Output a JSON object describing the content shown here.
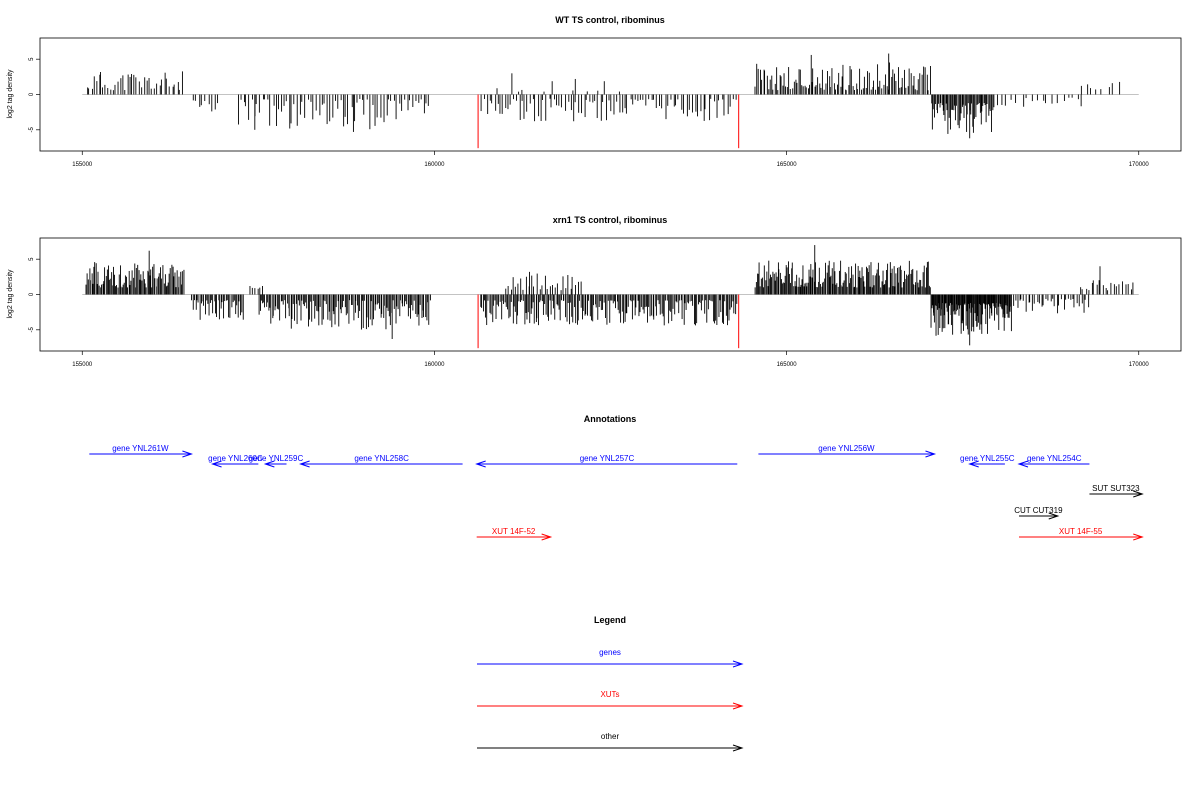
{
  "chart_data": [
    {
      "type": "bar",
      "title": "WT TS control, ribominus",
      "ylabel": "log2 tag density",
      "xlim": [
        154400,
        170600
      ],
      "ylim": [
        -8,
        8
      ],
      "xticks": [
        155000,
        160000,
        165000,
        170000
      ],
      "yticks": [
        -5,
        0,
        5
      ],
      "regions": [
        {
          "start": 155050,
          "end": 156450,
          "min": 0.6,
          "max": 3.4,
          "sign": 1,
          "n": 38,
          "seed": 11
        },
        {
          "start": 156550,
          "end": 156950,
          "min": 0.8,
          "max": 2.4,
          "sign": -1,
          "n": 9,
          "seed": 12
        },
        {
          "start": 157200,
          "end": 159950,
          "min": 0.6,
          "max": 5.0,
          "sign": -1,
          "n": 72,
          "seed": 13
        },
        {
          "start": 160650,
          "end": 164300,
          "min": 0.6,
          "max": 3.8,
          "sign": -1,
          "n": 95,
          "seed": 14
        },
        {
          "start": 160850,
          "end": 162800,
          "min": 0.4,
          "max": 2.0,
          "sign": 1,
          "n": 10,
          "seed": 15
        },
        {
          "start": 164550,
          "end": 167050,
          "min": 0.6,
          "max": 4.6,
          "sign": 1,
          "n": 110,
          "seed": 16
        },
        {
          "start": 167050,
          "end": 167950,
          "min": 1.2,
          "max": 5.6,
          "sign": -1,
          "n": 60,
          "seed": 17
        },
        {
          "start": 167950,
          "end": 169250,
          "min": 0.4,
          "max": 1.8,
          "sign": -1,
          "n": 18,
          "seed": 18
        },
        {
          "start": 169150,
          "end": 169750,
          "min": 0.6,
          "max": 1.8,
          "sign": 1,
          "n": 8,
          "seed": 19
        }
      ],
      "spikes": [
        {
          "x": 155250,
          "y": 2.8
        },
        {
          "x": 155700,
          "y": 2.9
        },
        {
          "x": 161100,
          "y": 3.0
        },
        {
          "x": 162000,
          "y": 2.2
        },
        {
          "x": 157450,
          "y": -5.0
        },
        {
          "x": 158850,
          "y": -5.3
        },
        {
          "x": 165350,
          "y": 5.6
        },
        {
          "x": 166450,
          "y": 5.8
        },
        {
          "x": 167600,
          "y": -6.2
        }
      ],
      "red_spikes": [
        {
          "x": 160620,
          "y": -7.6
        },
        {
          "x": 164320,
          "y": -7.6
        }
      ]
    },
    {
      "type": "bar",
      "title": "xrn1 TS control, ribominus",
      "ylabel": "log2 tag density",
      "xlim": [
        154400,
        170600
      ],
      "ylim": [
        -8,
        8
      ],
      "xticks": [
        155000,
        160000,
        165000,
        170000
      ],
      "yticks": [
        -5,
        0,
        5
      ],
      "regions": [
        {
          "start": 155050,
          "end": 156450,
          "min": 1.0,
          "max": 4.6,
          "sign": 1,
          "n": 90,
          "seed": 21
        },
        {
          "start": 156550,
          "end": 157300,
          "min": 0.8,
          "max": 3.6,
          "sign": -1,
          "n": 40,
          "seed": 22
        },
        {
          "start": 157350,
          "end": 157600,
          "min": 0.6,
          "max": 1.4,
          "sign": 1,
          "n": 6,
          "seed": 23
        },
        {
          "start": 157500,
          "end": 159950,
          "min": 0.8,
          "max": 5.0,
          "sign": -1,
          "n": 140,
          "seed": 24
        },
        {
          "start": 160650,
          "end": 164300,
          "min": 0.8,
          "max": 4.4,
          "sign": -1,
          "n": 200,
          "seed": 25
        },
        {
          "start": 161000,
          "end": 162100,
          "min": 0.6,
          "max": 3.0,
          "sign": 1,
          "n": 30,
          "seed": 26
        },
        {
          "start": 164550,
          "end": 167050,
          "min": 1.0,
          "max": 4.8,
          "sign": 1,
          "n": 170,
          "seed": 27
        },
        {
          "start": 167050,
          "end": 168200,
          "min": 1.2,
          "max": 6.0,
          "sign": -1,
          "n": 120,
          "seed": 28
        },
        {
          "start": 168200,
          "end": 169300,
          "min": 0.6,
          "max": 2.8,
          "sign": -1,
          "n": 35,
          "seed": 29
        },
        {
          "start": 169150,
          "end": 169950,
          "min": 0.6,
          "max": 2.4,
          "sign": 1,
          "n": 20,
          "seed": 30
        }
      ],
      "spikes": [
        {
          "x": 155950,
          "y": 6.2
        },
        {
          "x": 161350,
          "y": 3.2
        },
        {
          "x": 165400,
          "y": 7.0
        },
        {
          "x": 167600,
          "y": -7.2
        },
        {
          "x": 159400,
          "y": -6.3
        },
        {
          "x": 169450,
          "y": 4.0
        }
      ],
      "red_spikes": [
        {
          "x": 160620,
          "y": -7.6
        },
        {
          "x": 164320,
          "y": -7.6
        }
      ]
    }
  ],
  "annotations": {
    "title": "Annotations",
    "xlim": [
      154400,
      170600
    ],
    "features": [
      {
        "label": "gene YNL261W",
        "start": 155100,
        "end": 156550,
        "strand": "+",
        "row": 0,
        "color": "#0000ff"
      },
      {
        "label": "gene YNL260C",
        "start": 156850,
        "end": 157500,
        "strand": "-",
        "row": 1,
        "color": "#0000ff"
      },
      {
        "label": "gene YNL259C",
        "start": 157600,
        "end": 157900,
        "strand": "-",
        "row": 1,
        "color": "#0000ff"
      },
      {
        "label": "gene YNL258C",
        "start": 158100,
        "end": 160400,
        "strand": "-",
        "row": 1,
        "color": "#0000ff"
      },
      {
        "label": "gene YNL257C",
        "start": 160600,
        "end": 164300,
        "strand": "-",
        "row": 1,
        "color": "#0000ff"
      },
      {
        "label": "gene YNL256W",
        "start": 164600,
        "end": 167100,
        "strand": "+",
        "row": 0,
        "color": "#0000ff"
      },
      {
        "label": "gene YNL255C",
        "start": 167600,
        "end": 168100,
        "strand": "-",
        "row": 1,
        "color": "#0000ff"
      },
      {
        "label": "gene YNL254C",
        "start": 168300,
        "end": 169300,
        "strand": "-",
        "row": 1,
        "color": "#0000ff"
      },
      {
        "label": "SUT SUT323",
        "start": 169300,
        "end": 170050,
        "strand": "+",
        "row": 3,
        "color": "#000000"
      },
      {
        "label": "CUT CUT319",
        "start": 168300,
        "end": 168850,
        "strand": "+",
        "row": 4,
        "color": "#000000"
      },
      {
        "label": "XUT 14F-52",
        "start": 160600,
        "end": 161650,
        "strand": "+",
        "row": 5,
        "color": "#ff0000"
      },
      {
        "label": "XUT 14F-55",
        "start": 168300,
        "end": 170050,
        "strand": "+",
        "row": 5,
        "color": "#ff0000"
      }
    ]
  },
  "legend": {
    "title": "Legend",
    "items": [
      {
        "label": "genes",
        "color": "#0000ff"
      },
      {
        "label": "XUTs",
        "color": "#ff0000"
      },
      {
        "label": "other",
        "color": "#000000"
      }
    ]
  }
}
